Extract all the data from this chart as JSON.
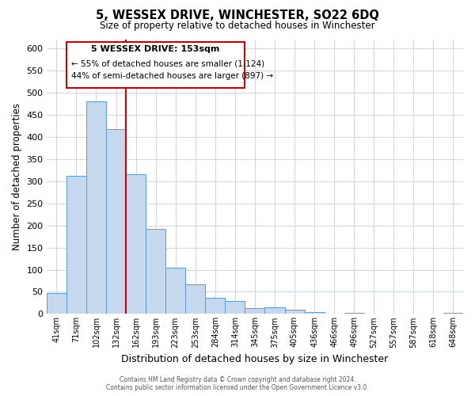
{
  "title": "5, WESSEX DRIVE, WINCHESTER, SO22 6DQ",
  "subtitle": "Size of property relative to detached houses in Winchester",
  "xlabel": "Distribution of detached houses by size in Winchester",
  "ylabel": "Number of detached properties",
  "bar_labels": [
    "41sqm",
    "71sqm",
    "102sqm",
    "132sqm",
    "162sqm",
    "193sqm",
    "223sqm",
    "253sqm",
    "284sqm",
    "314sqm",
    "345sqm",
    "375sqm",
    "405sqm",
    "436sqm",
    "466sqm",
    "496sqm",
    "527sqm",
    "557sqm",
    "587sqm",
    "618sqm",
    "648sqm"
  ],
  "bar_heights": [
    47,
    312,
    480,
    417,
    315,
    192,
    105,
    67,
    36,
    30,
    14,
    15,
    9,
    5,
    1,
    2,
    0,
    0,
    0,
    0,
    2
  ],
  "bar_color": "#c5d8ed",
  "bar_edge_color": "#5b9bd5",
  "vline_x": 3.5,
  "vline_color": "#cc0000",
  "annotation_title": "5 WESSEX DRIVE: 153sqm",
  "annotation_line1": "← 55% of detached houses are smaller (1,124)",
  "annotation_line2": "44% of semi-detached houses are larger (897) →",
  "annotation_box_color": "#ffffff",
  "annotation_box_edge": "#cc0000",
  "ylim": [
    0,
    620
  ],
  "yticks": [
    0,
    50,
    100,
    150,
    200,
    250,
    300,
    350,
    400,
    450,
    500,
    550,
    600
  ],
  "background_color": "#ffffff",
  "grid_color": "#d0d8e4",
  "footer1": "Contains HM Land Registry data © Crown copyright and database right 2024.",
  "footer2": "Contains public sector information licensed under the Open Government Licence v3.0."
}
